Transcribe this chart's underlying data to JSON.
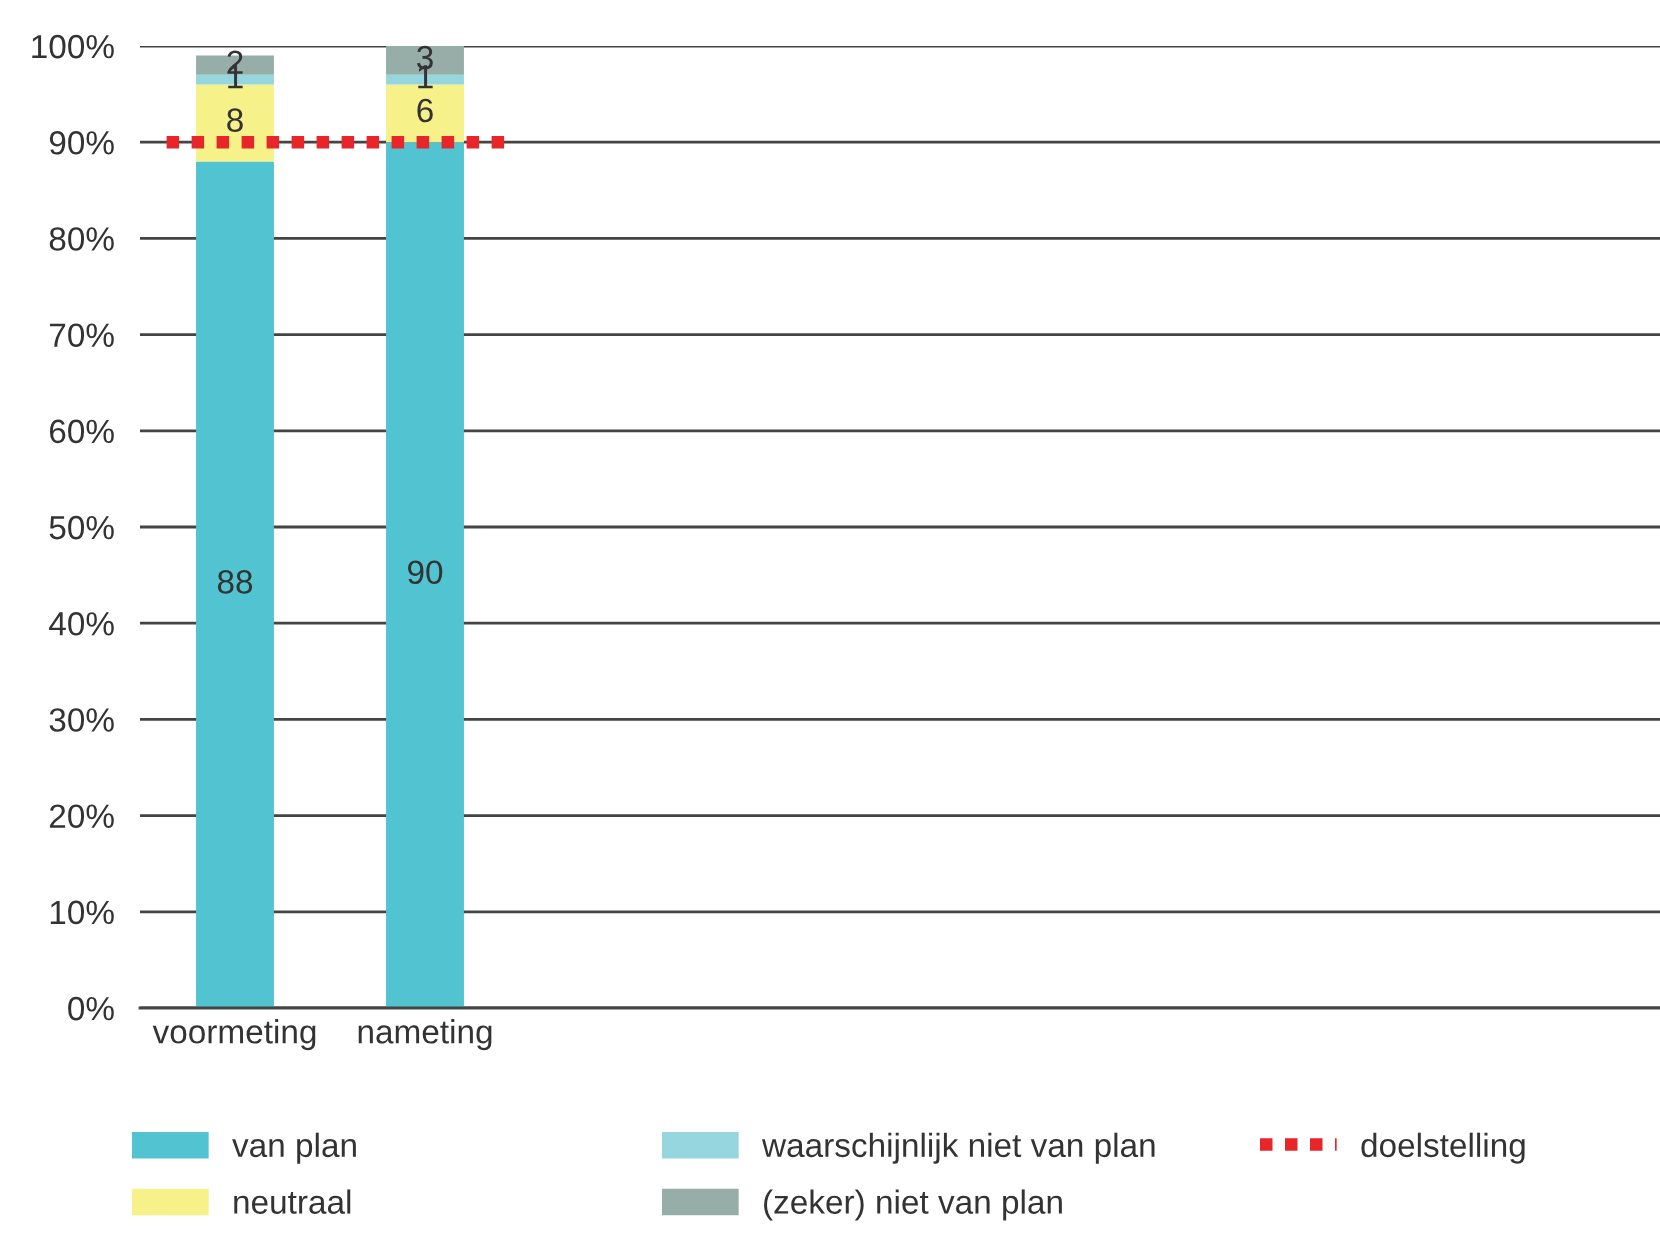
{
  "chart_data": {
    "type": "bar",
    "stacked": true,
    "categories": [
      "voormeting",
      "nameting",
      null,
      null,
      null,
      null,
      null,
      null
    ],
    "series": [
      {
        "name": "van plan",
        "color": "#52c3d0",
        "values": [
          88,
          90,
          null,
          null,
          null,
          null,
          null,
          null
        ]
      },
      {
        "name": "neutraal",
        "color": "#f7f18a",
        "values": [
          8,
          6,
          null,
          null,
          null,
          null,
          null,
          null
        ]
      },
      {
        "name": "waarschijnlijk niet van plan",
        "color": "#96d6df",
        "values": [
          1,
          1,
          null,
          null,
          null,
          null,
          null,
          null
        ]
      },
      {
        "name": "(zeker) niet van plan",
        "color": "#97aea8",
        "values": [
          2,
          3,
          null,
          null,
          null,
          null,
          null,
          null
        ]
      }
    ],
    "ylim": [
      0,
      100
    ],
    "yticks": [
      {
        "value": 0,
        "label": "0%"
      },
      {
        "value": 10,
        "label": "10%"
      },
      {
        "value": 20,
        "label": "20%"
      },
      {
        "value": 30,
        "label": "30%"
      },
      {
        "value": 40,
        "label": "40%"
      },
      {
        "value": 50,
        "label": "50%"
      },
      {
        "value": 60,
        "label": "60%"
      },
      {
        "value": 70,
        "label": "70%"
      },
      {
        "value": 80,
        "label": "80%"
      },
      {
        "value": 90,
        "label": "90%"
      },
      {
        "value": 100,
        "label": "100%"
      }
    ],
    "grid": "y",
    "legend": "bottom",
    "data_labels": true,
    "ref_lines": [
      {
        "axis": "y",
        "value": 90,
        "label": "doelstelling",
        "color": "#e8262a",
        "line_style": "dotted"
      }
    ]
  }
}
